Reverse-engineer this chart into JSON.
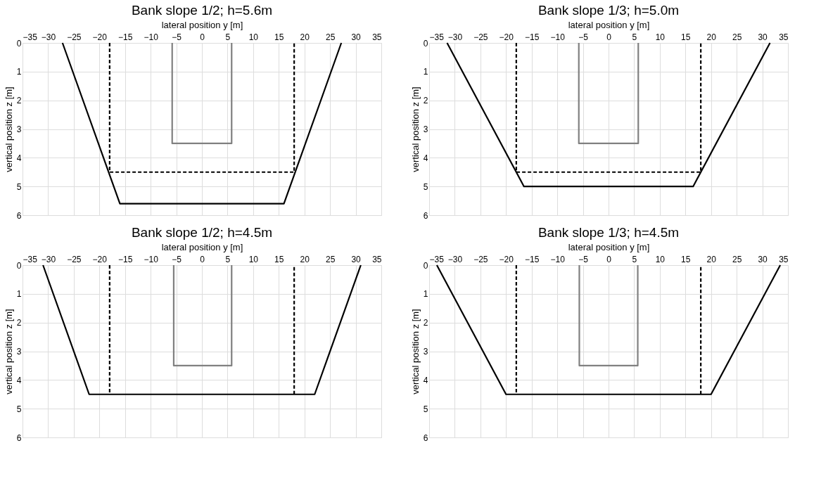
{
  "chart_data": [
    {
      "type": "line",
      "title": "Bank slope 1/2; h=5.6m",
      "xlabel": "lateral position y [m]",
      "ylabel": "vertical position z [m]",
      "xlim": [
        -35,
        35
      ],
      "xticks": [
        -35,
        -30,
        -25,
        -20,
        -15,
        -10,
        -5,
        0,
        5,
        10,
        15,
        20,
        25,
        30,
        35
      ],
      "ylim": [
        6,
        0
      ],
      "yticks": [
        0,
        1,
        2,
        3,
        4,
        5,
        6
      ],
      "grid": true,
      "series": [
        {
          "color": "#808080",
          "line_style": "solid",
          "x": [
            -5.8,
            -5.8,
            5.8,
            5.8
          ],
          "values": [
            0,
            3.5,
            3.5,
            0
          ]
        },
        {
          "color": "#000000",
          "line_style": "dashed",
          "x": [
            -18,
            -18,
            18,
            18
          ],
          "values": [
            0,
            4.5,
            4.5,
            0
          ]
        },
        {
          "color": "#000000",
          "line_style": "solid",
          "x": [
            -27.2,
            -16,
            16,
            27.2
          ],
          "values": [
            0,
            5.6,
            5.6,
            0
          ]
        }
      ]
    },
    {
      "type": "line",
      "title": "Bank slope 1/3; h=5.0m",
      "xlabel": "lateral position y [m]",
      "ylabel": "vertical position z [m]",
      "xlim": [
        -35,
        35
      ],
      "xticks": [
        -35,
        -30,
        -25,
        -20,
        -15,
        -10,
        -5,
        0,
        5,
        10,
        15,
        20,
        25,
        30,
        35
      ],
      "ylim": [
        6,
        0
      ],
      "yticks": [
        0,
        1,
        2,
        3,
        4,
        5,
        6
      ],
      "grid": true,
      "series": [
        {
          "color": "#808080",
          "line_style": "solid",
          "x": [
            -5.8,
            -5.8,
            5.8,
            5.8
          ],
          "values": [
            0,
            3.5,
            3.5,
            0
          ]
        },
        {
          "color": "#000000",
          "line_style": "dashed",
          "x": [
            -18,
            -18,
            18,
            18
          ],
          "values": [
            0,
            4.5,
            4.5,
            0
          ]
        },
        {
          "color": "#000000",
          "line_style": "solid",
          "x": [
            -31.5,
            -16.5,
            16.5,
            31.5
          ],
          "values": [
            0,
            5.0,
            5.0,
            0
          ]
        }
      ]
    },
    {
      "type": "line",
      "title": "Bank slope 1/2; h=4.5m",
      "xlabel": "lateral position y [m]",
      "ylabel": "vertical position z [m]",
      "xlim": [
        -35,
        35
      ],
      "xticks": [
        -35,
        -30,
        -25,
        -20,
        -15,
        -10,
        -5,
        0,
        5,
        10,
        15,
        20,
        25,
        30,
        35
      ],
      "ylim": [
        6,
        0
      ],
      "yticks": [
        0,
        1,
        2,
        3,
        4,
        5,
        6
      ],
      "grid": true,
      "series": [
        {
          "color": "#808080",
          "line_style": "solid",
          "x": [
            -5.5,
            -5.5,
            5.8,
            5.8
          ],
          "values": [
            0,
            3.5,
            3.5,
            0
          ]
        },
        {
          "color": "#000000",
          "line_style": "dashed",
          "x": [
            -18,
            -18,
            null,
            18,
            18
          ],
          "values": [
            0,
            4.5,
            null,
            4.5,
            0
          ]
        },
        {
          "color": "#000000",
          "line_style": "solid",
          "x": [
            -31,
            -22,
            22,
            31
          ],
          "values": [
            0,
            4.5,
            4.5,
            0
          ]
        }
      ]
    },
    {
      "type": "line",
      "title": "Bank slope 1/3; h=4.5m",
      "xlabel": "lateral position y [m]",
      "ylabel": "vertical position z [m]",
      "xlim": [
        -35,
        35
      ],
      "xticks": [
        -35,
        -30,
        -25,
        -20,
        -15,
        -10,
        -5,
        0,
        5,
        10,
        15,
        20,
        25,
        30,
        35
      ],
      "ylim": [
        6,
        0
      ],
      "yticks": [
        0,
        1,
        2,
        3,
        4,
        5,
        6
      ],
      "grid": true,
      "series": [
        {
          "color": "#808080",
          "line_style": "solid",
          "x": [
            -5.7,
            -5.7,
            5.7,
            5.7
          ],
          "values": [
            0,
            3.5,
            3.5,
            0
          ]
        },
        {
          "color": "#000000",
          "line_style": "dashed",
          "x": [
            -18,
            -18,
            null,
            18,
            18
          ],
          "values": [
            0,
            4.5,
            null,
            4.5,
            0
          ]
        },
        {
          "color": "#000000",
          "line_style": "solid",
          "x": [
            -33.5,
            -20,
            20,
            33.5
          ],
          "values": [
            0,
            4.5,
            4.5,
            0
          ]
        }
      ]
    }
  ]
}
